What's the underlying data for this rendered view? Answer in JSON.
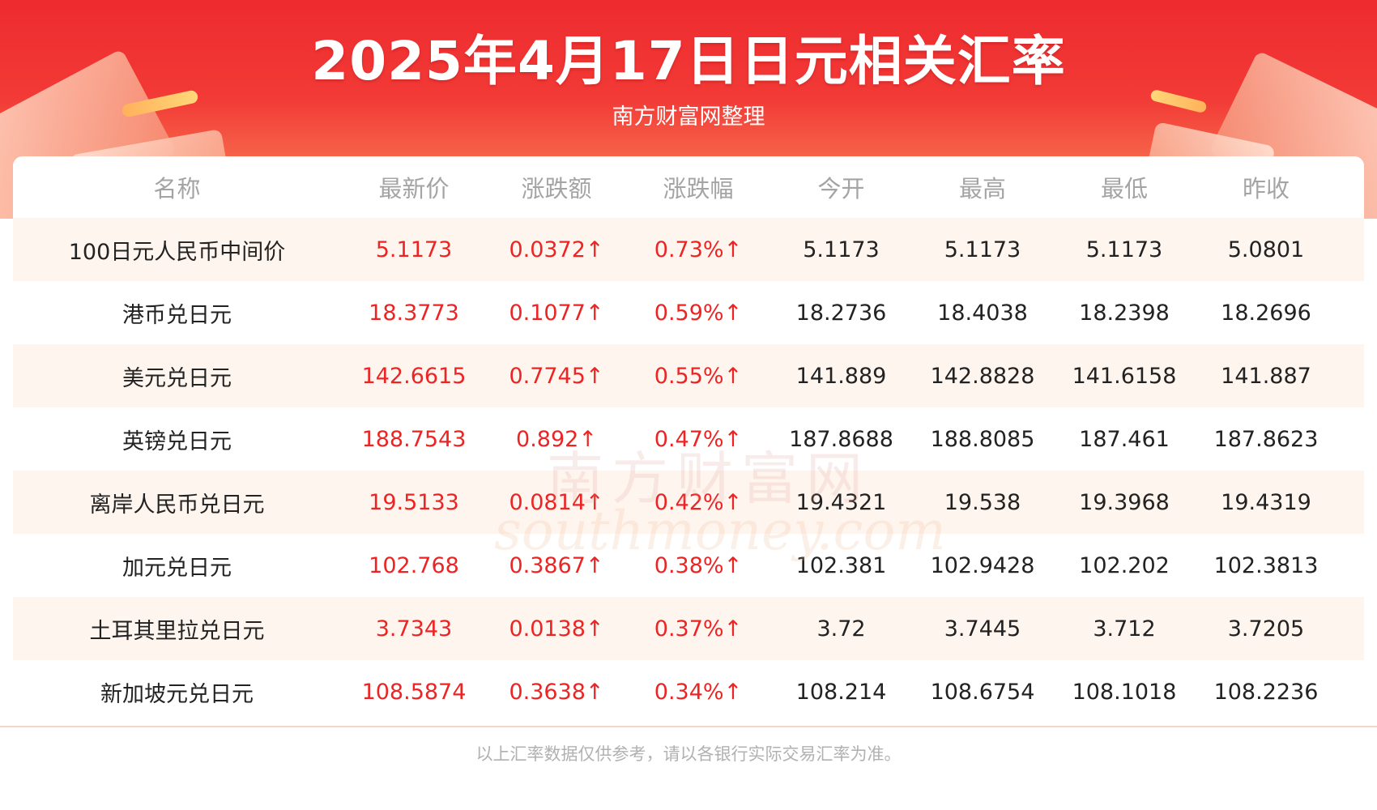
{
  "header": {
    "title": "2025年4月17日日元相关汇率",
    "subtitle": "南方财富网整理"
  },
  "table": {
    "columns": [
      "名称",
      "最新价",
      "涨跌额",
      "涨跌幅",
      "今开",
      "最高",
      "最低",
      "昨收"
    ],
    "rows": [
      [
        "100日元人民币中间价",
        "5.1173",
        "0.0372↑",
        "0.73%↑",
        "5.1173",
        "5.1173",
        "5.1173",
        "5.0801"
      ],
      [
        "港币兑日元",
        "18.3773",
        "0.1077↑",
        "0.59%↑",
        "18.2736",
        "18.4038",
        "18.2398",
        "18.2696"
      ],
      [
        "美元兑日元",
        "142.6615",
        "0.7745↑",
        "0.55%↑",
        "141.889",
        "142.8828",
        "141.6158",
        "141.887"
      ],
      [
        "英镑兑日元",
        "188.7543",
        "0.892↑",
        "0.47%↑",
        "187.8688",
        "188.8085",
        "187.461",
        "187.8623"
      ],
      [
        "离岸人民币兑日元",
        "19.5133",
        "0.0814↑",
        "0.42%↑",
        "19.4321",
        "19.538",
        "19.3968",
        "19.4319"
      ],
      [
        "加元兑日元",
        "102.768",
        "0.3867↑",
        "0.38%↑",
        "102.381",
        "102.9428",
        "102.202",
        "102.3813"
      ],
      [
        "土耳其里拉兑日元",
        "3.7343",
        "0.0138↑",
        "0.37%↑",
        "3.72",
        "3.7445",
        "3.712",
        "3.7205"
      ],
      [
        "新加坡元兑日元",
        "108.5874",
        "0.3638↑",
        "0.34%↑",
        "108.214",
        "108.6754",
        "108.1018",
        "108.2236"
      ]
    ]
  },
  "watermark": {
    "cn": "南方财富网",
    "en": "southmoney.com"
  },
  "footer": {
    "note": "以上汇率数据仅供参考，请以各银行实际交易汇率为准。"
  },
  "colors": {
    "banner_red": "#ee2b2f",
    "rise_red": "#ec2424",
    "row_alt": "#fff5ef",
    "header_text": "#a4a4a4"
  }
}
